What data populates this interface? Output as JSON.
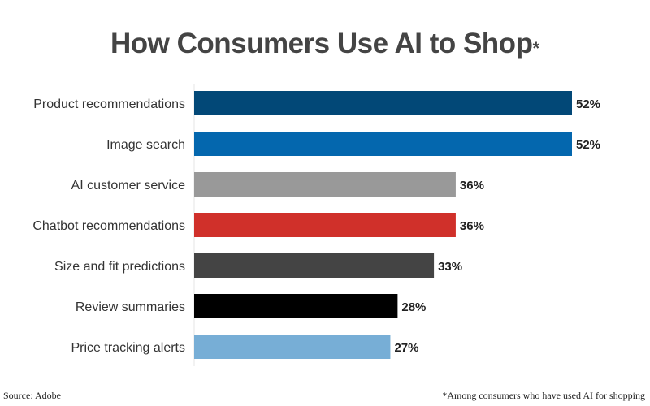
{
  "chart_data": {
    "type": "bar",
    "orientation": "horizontal",
    "title": "How Consumers Use AI to Shop",
    "title_mark": "*",
    "categories": [
      "Product recommendations",
      "Image search",
      "AI customer service",
      "Chatbot recommendations",
      "Size and fit predictions",
      "Review summaries",
      "Price tracking alerts"
    ],
    "values": [
      52,
      52,
      36,
      36,
      33,
      28,
      27
    ],
    "value_labels": [
      "52%",
      "52%",
      "36%",
      "36%",
      "33%",
      "28%",
      "27%"
    ],
    "unit": "%",
    "bar_colors": [
      "#024877",
      "#0467ae",
      "#999999",
      "#d0302a",
      "#444444",
      "#000000",
      "#77aed6"
    ],
    "xlim": [
      0,
      52
    ],
    "grid": false,
    "legend": "none"
  },
  "footer": {
    "source": "Source: Adobe",
    "footnote": "*Among consumers who have used AI for shopping"
  }
}
